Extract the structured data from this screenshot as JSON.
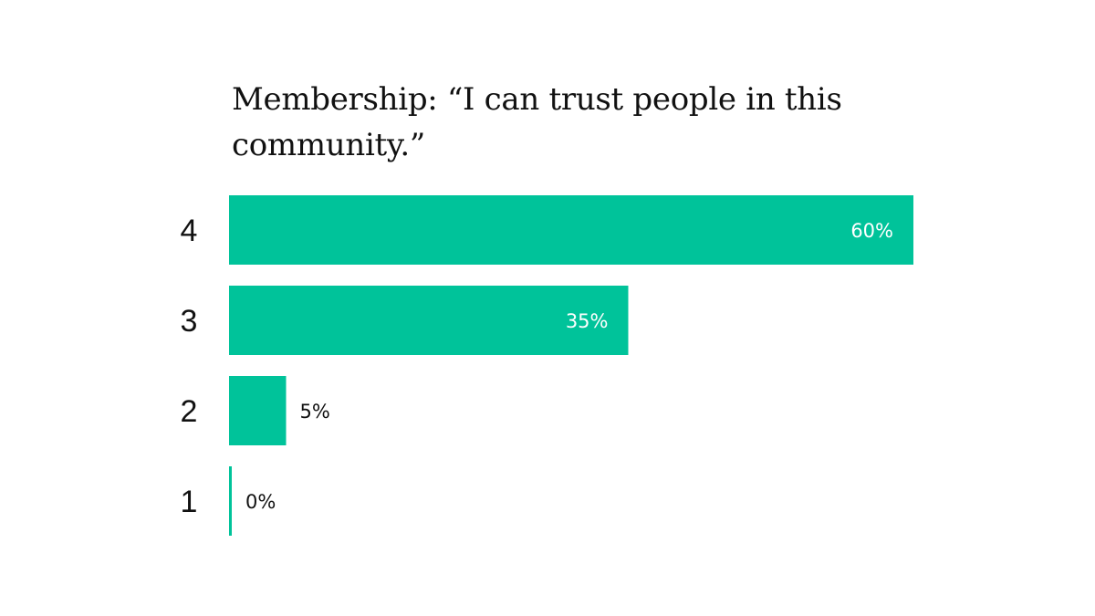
{
  "chart_data": {
    "type": "bar",
    "orientation": "horizontal",
    "title": "Membership: “I can trust people in this community.”",
    "categories": [
      "4",
      "3",
      "2",
      "1"
    ],
    "values": [
      60,
      35,
      5,
      0
    ],
    "value_labels": [
      "60%",
      "35%",
      "5%",
      "0%"
    ],
    "xlim": [
      0,
      60
    ],
    "grid": false,
    "bar_color": "#00c39a",
    "label_color_inside": "#ffffff",
    "label_color_outside": "#111111"
  }
}
